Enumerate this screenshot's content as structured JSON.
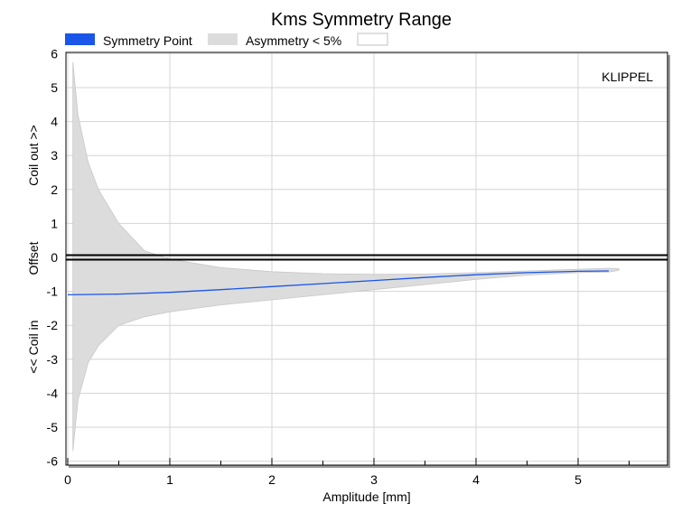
{
  "chart_data": {
    "type": "area",
    "title": "Kms Symmetry Range",
    "xlabel": "Amplitude [mm]",
    "ylabel": "<< Coil in    Offset    Coil out >>",
    "ylabel_parts": [
      "<< Coil in",
      "Offset",
      "Coil out >>"
    ],
    "xlim": [
      0,
      5.9
    ],
    "ylim": [
      -6.1,
      6.1
    ],
    "x_ticks": [
      "0",
      "1",
      "2",
      "3",
      "4",
      "5"
    ],
    "y_ticks": [
      "6",
      "5",
      "4",
      "3",
      "2",
      "1",
      "0",
      "-1",
      "-2",
      "-3",
      "-4",
      "-5",
      "-6"
    ],
    "grid": true,
    "legend_position": "top",
    "annotation": "KLIPPEL",
    "series": [
      {
        "name": "Symmetry Point",
        "type": "line",
        "color": "#1a56e8",
        "x": [
          0.0,
          0.5,
          1.0,
          1.5,
          2.0,
          2.5,
          3.0,
          3.5,
          4.0,
          4.5,
          5.0,
          5.3
        ],
        "y": [
          -1.1,
          -1.08,
          -1.03,
          -0.95,
          -0.86,
          -0.77,
          -0.68,
          -0.59,
          -0.51,
          -0.45,
          -0.41,
          -0.4
        ]
      },
      {
        "name": "Asymmetry < 5%",
        "type": "band",
        "color": "#dcdcdc",
        "x": [
          0.05,
          0.1,
          0.2,
          0.3,
          0.5,
          0.75,
          1.0,
          1.5,
          2.0,
          2.5,
          3.0,
          3.5,
          4.0,
          4.5,
          5.0,
          5.3,
          5.4
        ],
        "upper": [
          5.75,
          4.2,
          2.8,
          2.0,
          1.0,
          0.2,
          -0.05,
          -0.3,
          -0.42,
          -0.48,
          -0.5,
          -0.49,
          -0.45,
          -0.4,
          -0.35,
          -0.32,
          -0.33
        ],
        "lower": [
          -5.7,
          -4.2,
          -3.1,
          -2.6,
          -2.0,
          -1.75,
          -1.6,
          -1.4,
          -1.25,
          -1.1,
          -0.95,
          -0.8,
          -0.65,
          -0.52,
          -0.45,
          -0.43,
          -0.38
        ]
      },
      {
        "name": "",
        "type": "line",
        "color": "#000000",
        "x": [
          0.0,
          5.9
        ],
        "y": [
          0.0,
          0.0
        ]
      }
    ]
  },
  "legend": {
    "items": [
      {
        "label": "Symmetry Point",
        "color": "#1a56e8"
      },
      {
        "label": "Asymmetry < 5%",
        "color": "#dcdcdc"
      },
      {
        "label": "",
        "color": "#ffffff"
      }
    ]
  }
}
